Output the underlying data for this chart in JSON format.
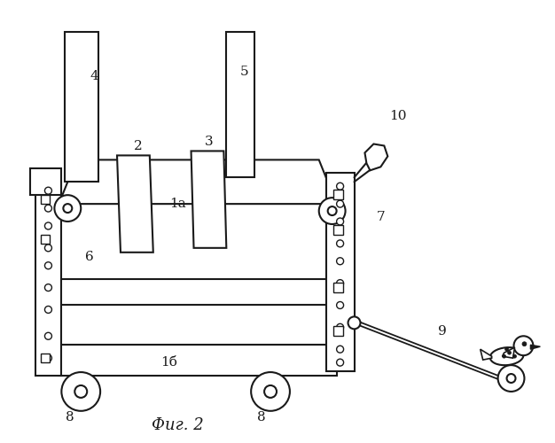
{
  "title": "Фиг. 2",
  "bg_color": "#ffffff",
  "line_color": "#1a1a1a",
  "figsize": [
    6.26,
    5.0
  ],
  "dpi": 100
}
